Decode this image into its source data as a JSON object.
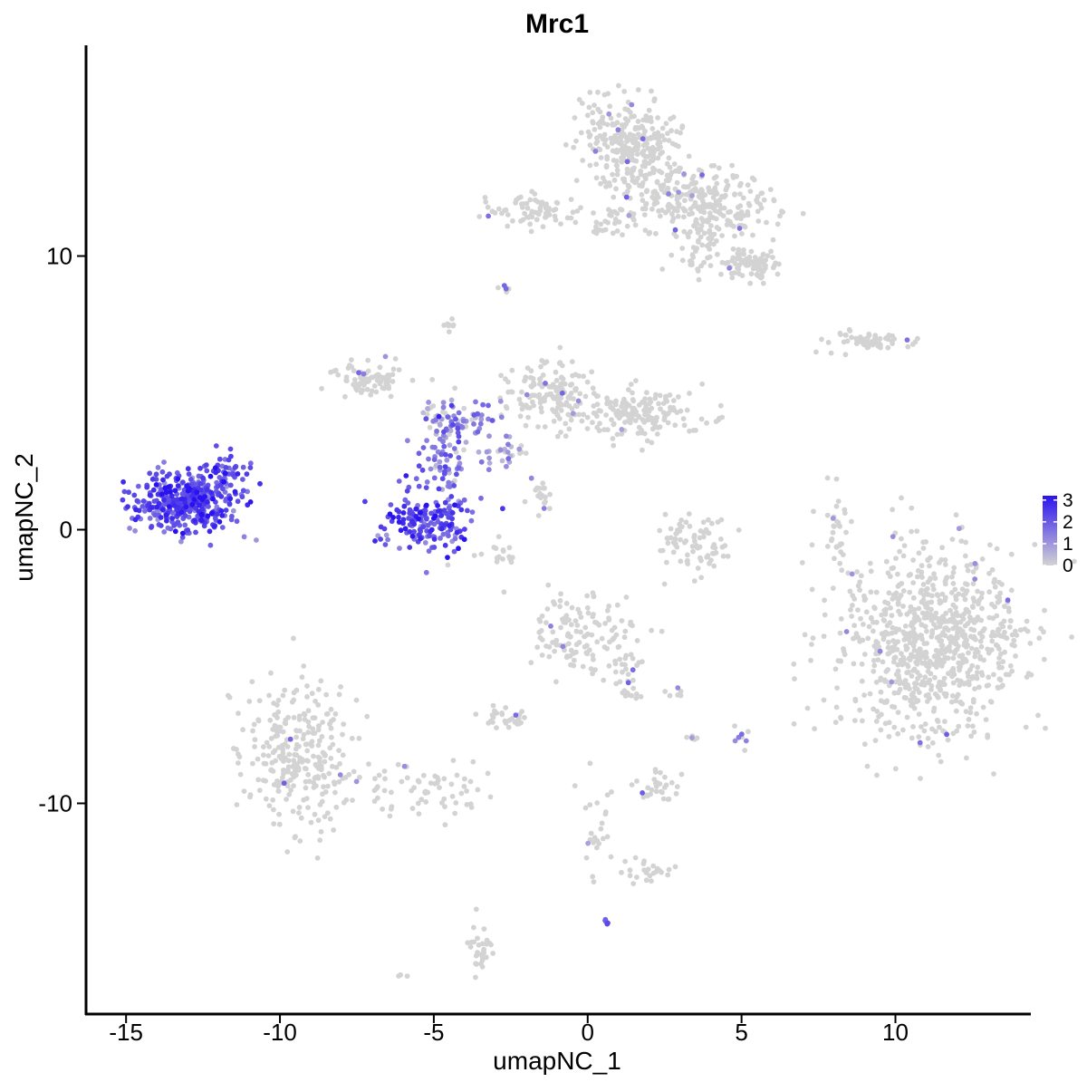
{
  "chart_data": {
    "type": "scatter",
    "title": "Mrc1",
    "xlabel": "umapNC_1",
    "ylabel": "umapNC_2",
    "xlim": [
      -16.3,
      14.4
    ],
    "ylim": [
      -17.7,
      17.7
    ],
    "xticks": [
      -15,
      -10,
      -5,
      0,
      5,
      10
    ],
    "xtick_labels": [
      "-15",
      "-10",
      "-5",
      "0",
      "5",
      "10"
    ],
    "yticks": [
      -10,
      0,
      10
    ],
    "ytick_labels": [
      "-10",
      "0",
      "10"
    ],
    "grid": false,
    "legend_placement": "right",
    "color_scale": {
      "low_color": "#d3d3d3",
      "high_color": "#2a12f0",
      "min": 0,
      "max": 3.2,
      "ticks": [
        0,
        1,
        2,
        3
      ],
      "tick_labels": [
        "0",
        "1",
        "2",
        "3"
      ]
    },
    "clusters": [
      {
        "center": [
          -13.0,
          1.0
        ],
        "spread": [
          0.85,
          0.55
        ],
        "n": 420,
        "expr_mean": 2.1,
        "expr_sd": 0.6,
        "expr_frac": 1.0
      },
      {
        "center": [
          -11.8,
          2.2
        ],
        "spread": [
          0.35,
          0.35
        ],
        "n": 40,
        "expr_mean": 2.2,
        "expr_sd": 0.5,
        "expr_frac": 1.0
      },
      {
        "center": [
          -5.2,
          0.3
        ],
        "spread": [
          0.7,
          0.6
        ],
        "n": 170,
        "expr_mean": 2.2,
        "expr_sd": 0.6,
        "expr_frac": 1.0
      },
      {
        "center": [
          -4.6,
          2.4
        ],
        "spread": [
          0.4,
          0.8
        ],
        "n": 70,
        "expr_mean": 1.6,
        "expr_sd": 0.6,
        "expr_frac": 0.95
      },
      {
        "center": [
          -3.9,
          3.9
        ],
        "spread": [
          0.45,
          0.3
        ],
        "n": 50,
        "expr_mean": 1.4,
        "expr_sd": 0.6,
        "expr_frac": 0.9
      },
      {
        "center": [
          -2.8,
          2.8
        ],
        "spread": [
          0.5,
          0.35
        ],
        "n": 30,
        "expr_mean": 1.0,
        "expr_sd": 0.5,
        "expr_frac": 0.7
      },
      {
        "center": [
          -7.0,
          5.5
        ],
        "spread": [
          0.6,
          0.3
        ],
        "n": 80,
        "expr_mean": 0,
        "expr_sd": 0,
        "expr_frac": 0.03
      },
      {
        "center": [
          -4.8,
          4.2
        ],
        "spread": [
          0.4,
          0.3
        ],
        "n": 25,
        "expr_mean": 1.0,
        "expr_sd": 0.5,
        "expr_frac": 0.5
      },
      {
        "center": [
          -1.2,
          5.0
        ],
        "spread": [
          0.8,
          0.6
        ],
        "n": 140,
        "expr_mean": 0,
        "expr_sd": 0,
        "expr_frac": 0.02
      },
      {
        "center": [
          1.8,
          4.2
        ],
        "spread": [
          1.1,
          0.45
        ],
        "n": 170,
        "expr_mean": 0,
        "expr_sd": 0,
        "expr_frac": 0.01
      },
      {
        "center": [
          -1.6,
          1.1
        ],
        "spread": [
          0.3,
          0.3
        ],
        "n": 20,
        "expr_mean": 0,
        "expr_sd": 0,
        "expr_frac": 0.05
      },
      {
        "center": [
          1.4,
          14.1
        ],
        "spread": [
          0.8,
          0.9
        ],
        "n": 300,
        "expr_mean": 0,
        "expr_sd": 0,
        "expr_frac": 0.01
      },
      {
        "center": [
          3.1,
          12.2
        ],
        "spread": [
          0.8,
          0.6
        ],
        "n": 150,
        "expr_mean": 0,
        "expr_sd": 0,
        "expr_frac": 0.02
      },
      {
        "center": [
          4.5,
          11.8
        ],
        "spread": [
          0.8,
          0.6
        ],
        "n": 110,
        "expr_mean": 0,
        "expr_sd": 0,
        "expr_frac": 0.02
      },
      {
        "center": [
          5.3,
          9.7
        ],
        "spread": [
          0.5,
          0.25
        ],
        "n": 80,
        "expr_mean": 0,
        "expr_sd": 0,
        "expr_frac": 0.01
      },
      {
        "center": [
          3.6,
          10.4
        ],
        "spread": [
          0.5,
          0.6
        ],
        "n": 60,
        "expr_mean": 0,
        "expr_sd": 0,
        "expr_frac": 0.02
      },
      {
        "center": [
          -1.7,
          11.7
        ],
        "spread": [
          0.8,
          0.3
        ],
        "n": 70,
        "expr_mean": 0,
        "expr_sd": 0,
        "expr_frac": 0.03
      },
      {
        "center": [
          0.9,
          11.2
        ],
        "spread": [
          0.6,
          0.3
        ],
        "n": 30,
        "expr_mean": 0,
        "expr_sd": 0,
        "expr_frac": 0.03
      },
      {
        "center": [
          8.9,
          6.9
        ],
        "spread": [
          0.8,
          0.2
        ],
        "n": 60,
        "expr_mean": 0,
        "expr_sd": 0,
        "expr_frac": 0.03
      },
      {
        "center": [
          11.2,
          -4.2
        ],
        "spread": [
          1.5,
          1.7
        ],
        "n": 850,
        "expr_mean": 0,
        "expr_sd": 0,
        "expr_frac": 0.012
      },
      {
        "center": [
          -9.3,
          -8.2
        ],
        "spread": [
          0.9,
          1.4
        ],
        "n": 280,
        "expr_mean": 0,
        "expr_sd": 0,
        "expr_frac": 0.005
      },
      {
        "center": [
          -5.6,
          -9.5
        ],
        "spread": [
          1.3,
          0.5
        ],
        "n": 70,
        "expr_mean": 0,
        "expr_sd": 0,
        "expr_frac": 0.02
      },
      {
        "center": [
          -0.3,
          -3.8
        ],
        "spread": [
          0.8,
          0.7
        ],
        "n": 130,
        "expr_mean": 0,
        "expr_sd": 0,
        "expr_frac": 0.03
      },
      {
        "center": [
          1.2,
          -5.3
        ],
        "spread": [
          0.3,
          0.6
        ],
        "n": 30,
        "expr_mean": 0,
        "expr_sd": 0,
        "expr_frac": 0.03
      },
      {
        "center": [
          3.4,
          -0.5
        ],
        "spread": [
          0.6,
          0.55
        ],
        "n": 80,
        "expr_mean": 0,
        "expr_sd": 0,
        "expr_frac": 0.01
      },
      {
        "center": [
          8.1,
          -0.1
        ],
        "spread": [
          0.2,
          0.7
        ],
        "n": 30,
        "expr_mean": 0,
        "expr_sd": 0,
        "expr_frac": 0.03
      },
      {
        "center": [
          -2.6,
          -6.9
        ],
        "spread": [
          0.4,
          0.2
        ],
        "n": 30,
        "expr_mean": 0,
        "expr_sd": 0,
        "expr_frac": 0.03
      },
      {
        "center": [
          2.4,
          -9.4
        ],
        "spread": [
          0.4,
          0.3
        ],
        "n": 30,
        "expr_mean": 0,
        "expr_sd": 0,
        "expr_frac": 0.03
      },
      {
        "center": [
          2.0,
          -12.6
        ],
        "spread": [
          0.5,
          0.25
        ],
        "n": 25,
        "expr_mean": 0,
        "expr_sd": 0,
        "expr_frac": 0.03
      },
      {
        "center": [
          -3.5,
          -15.3
        ],
        "spread": [
          0.25,
          0.5
        ],
        "n": 30,
        "expr_mean": 0,
        "expr_sd": 0,
        "expr_frac": 0.02
      },
      {
        "center": [
          0.3,
          -10.5
        ],
        "spread": [
          0.3,
          1.2
        ],
        "n": 25,
        "expr_mean": 0,
        "expr_sd": 0,
        "expr_frac": 0.05
      },
      {
        "center": [
          -3.0,
          -0.9
        ],
        "spread": [
          0.6,
          0.4
        ],
        "n": 20,
        "expr_mean": 0,
        "expr_sd": 0,
        "expr_frac": 0.05
      },
      {
        "center": [
          -4.5,
          7.5
        ],
        "spread": [
          0.1,
          0.2
        ],
        "n": 8,
        "expr_mean": 0,
        "expr_sd": 0,
        "expr_frac": 0.2
      },
      {
        "center": [
          -2.8,
          8.8
        ],
        "spread": [
          0.15,
          0.1
        ],
        "n": 6,
        "expr_mean": 0,
        "expr_sd": 0,
        "expr_frac": 0.2
      },
      {
        "center": [
          5.0,
          -7.4
        ],
        "spread": [
          0.1,
          0.2
        ],
        "n": 8,
        "expr_mean": 0,
        "expr_sd": 0,
        "expr_frac": 0.2
      },
      {
        "center": [
          0.6,
          -14.3
        ],
        "spread": [
          0.05,
          0.05
        ],
        "n": 5,
        "expr_mean": 2.0,
        "expr_sd": 0.3,
        "expr_frac": 1.0
      },
      {
        "center": [
          3.3,
          -7.6
        ],
        "spread": [
          0.1,
          0.2
        ],
        "n": 6,
        "expr_mean": 0,
        "expr_sd": 0,
        "expr_frac": 0.1
      },
      {
        "center": [
          2.8,
          -6.0
        ],
        "spread": [
          0.3,
          0.1
        ],
        "n": 6,
        "expr_mean": 0,
        "expr_sd": 0,
        "expr_frac": 0.1
      },
      {
        "center": [
          -6.0,
          -16.3
        ],
        "spread": [
          0.1,
          0.05
        ],
        "n": 3,
        "expr_mean": 0,
        "expr_sd": 0,
        "expr_frac": 0
      }
    ]
  }
}
